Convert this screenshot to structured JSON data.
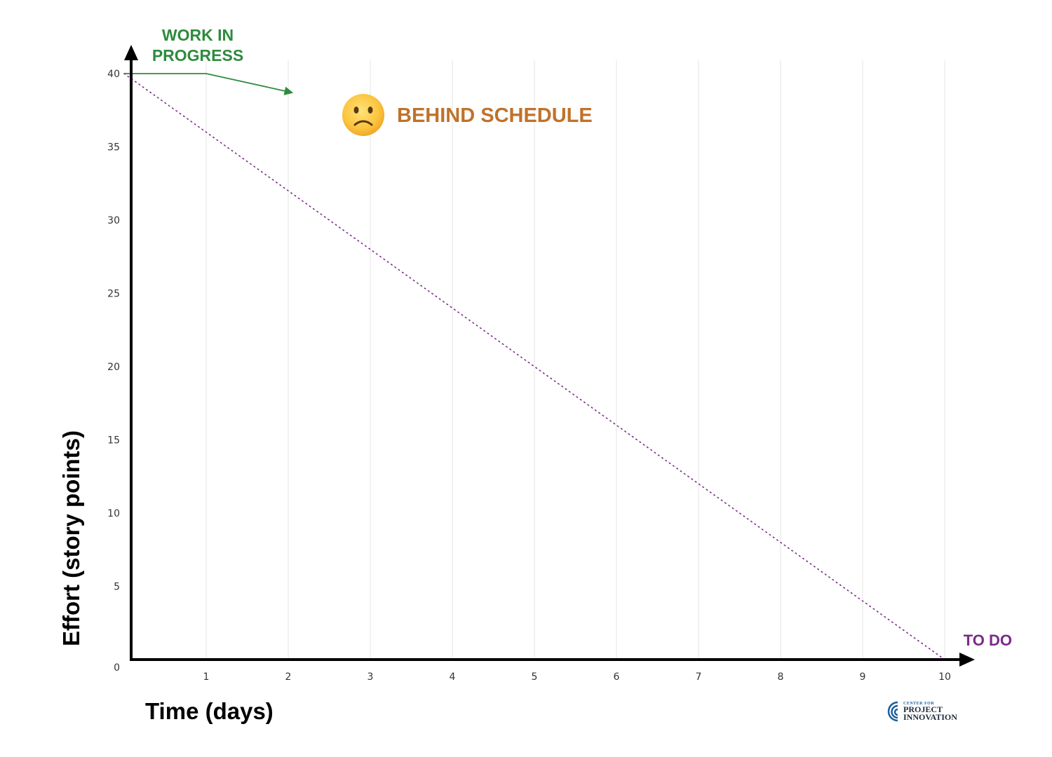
{
  "chart_data": {
    "type": "line",
    "xlabel": "Time (days)",
    "ylabel": "Effort (story points)",
    "xlim": [
      0,
      10
    ],
    "ylim": [
      0,
      40
    ],
    "x_ticks": [
      "1",
      "2",
      "3",
      "4",
      "5",
      "6",
      "7",
      "8",
      "9",
      "10"
    ],
    "y_ticks": [
      "0",
      "5",
      "10",
      "15",
      "20",
      "25",
      "30",
      "35",
      "40"
    ],
    "grid": "vertical",
    "series": [
      {
        "name": "WORK IN PROGRESS",
        "style": "solid-arrow",
        "color": "#2e8b3e",
        "x": [
          0,
          1,
          2.05
        ],
        "y": [
          40,
          40,
          38.7
        ]
      },
      {
        "name": "",
        "style": "dotted",
        "color": "#7b2a8a",
        "x": [
          0,
          10
        ],
        "y": [
          40,
          0
        ]
      }
    ],
    "annotations": {
      "wip_line1": "WORK IN",
      "wip_line2": "PROGRESS",
      "status": "BEHIND SCHEDULE",
      "status_icon": "slightly-frowning-face-icon",
      "todo": "TO DO"
    }
  },
  "logo": {
    "line1": "CENTER FOR",
    "line2": "PROJECT",
    "line3": "INNOVATION",
    "color": "#1b5e9e"
  }
}
